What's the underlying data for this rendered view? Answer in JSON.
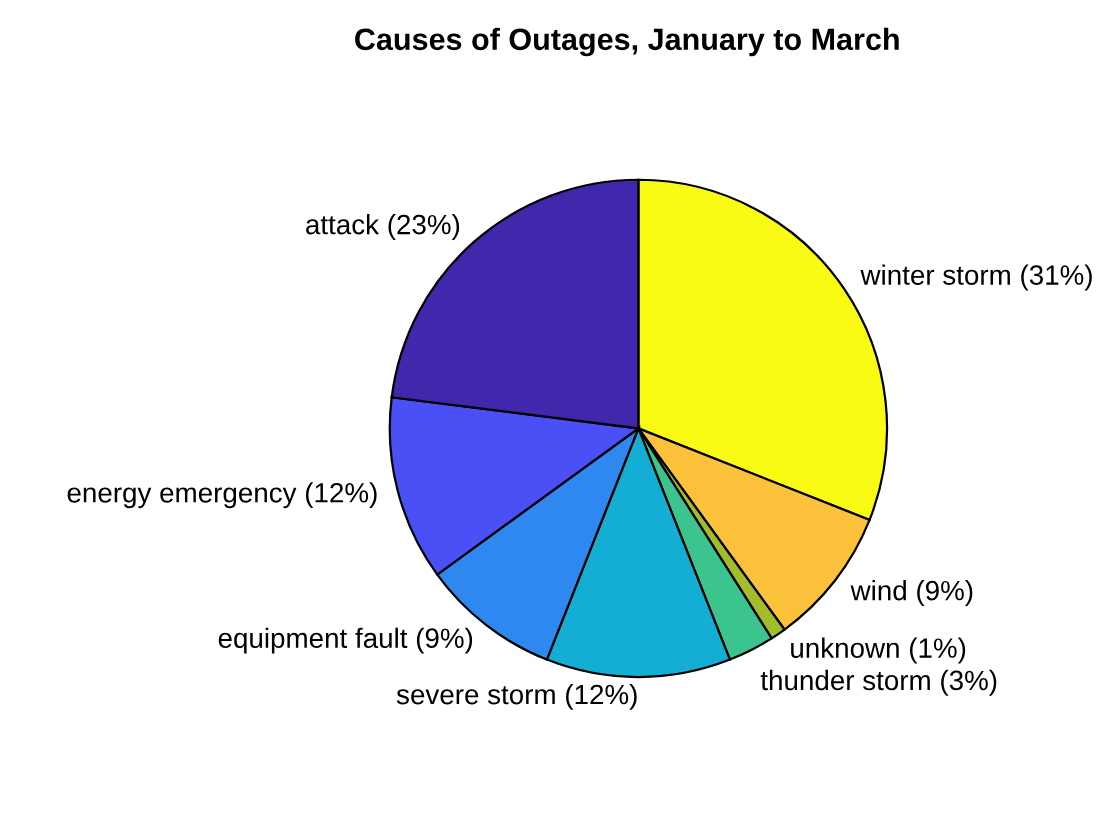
{
  "chart_data": {
    "type": "pie",
    "title": "Causes of Outages, January to March",
    "categories": [
      "winter storm (31%)",
      "wind (9%)",
      "unknown (1%)",
      "thunder storm (3%)",
      "severe storm (12%)",
      "equipment fault (9%)",
      "energy emergency (12%)",
      "attack (23%)"
    ],
    "values": [
      31,
      9,
      1,
      3,
      12,
      9,
      12,
      23
    ],
    "colors": [
      "#f9fb15",
      "#fbc13a",
      "#a3bd2a",
      "#3cc48f",
      "#14aed5",
      "#2e88f0",
      "#4a50f5",
      "#4127ab"
    ]
  }
}
